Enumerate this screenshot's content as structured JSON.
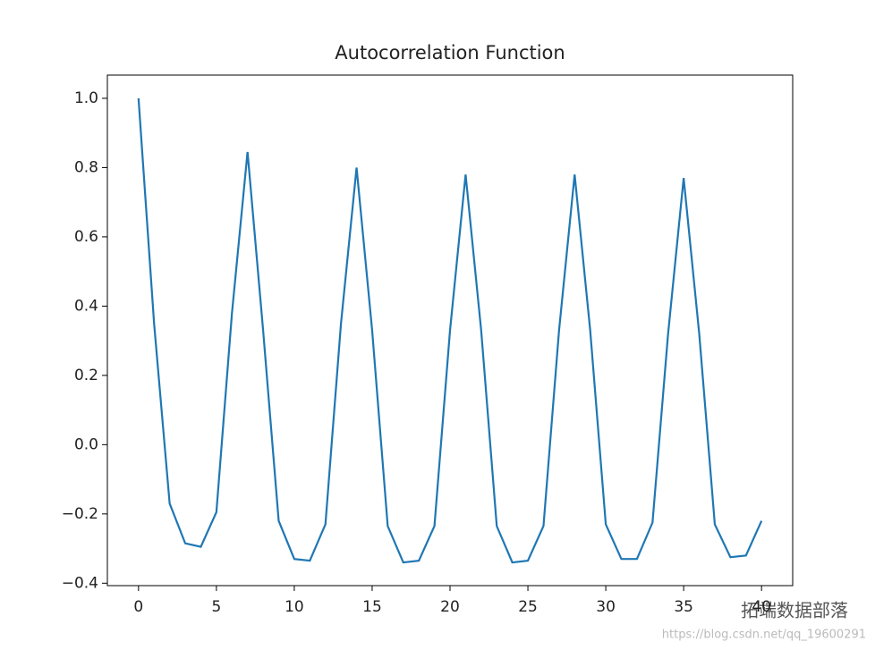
{
  "chart_data": {
    "type": "line",
    "title": "Autocorrelation Function",
    "x": [
      0,
      1,
      2,
      3,
      4,
      5,
      6,
      7,
      8,
      9,
      10,
      11,
      12,
      13,
      14,
      15,
      16,
      17,
      18,
      19,
      20,
      21,
      22,
      23,
      24,
      25,
      26,
      27,
      28,
      29,
      30,
      31,
      32,
      33,
      34,
      35,
      36,
      37,
      38,
      39,
      40
    ],
    "series": [
      {
        "color": "#1f77b4",
        "values": [
          1.0,
          0.35,
          -0.17,
          -0.285,
          -0.295,
          -0.195,
          0.38,
          0.845,
          0.33,
          -0.22,
          -0.33,
          -0.335,
          -0.23,
          0.35,
          0.8,
          0.33,
          -0.235,
          -0.34,
          -0.335,
          -0.235,
          0.33,
          0.78,
          0.33,
          -0.235,
          -0.34,
          -0.335,
          -0.235,
          0.33,
          0.78,
          0.33,
          -0.23,
          -0.33,
          -0.33,
          -0.225,
          0.32,
          0.77,
          0.32,
          -0.23,
          -0.325,
          -0.32,
          -0.22
        ]
      }
    ],
    "xlim": [
      -2,
      42
    ],
    "xticks": [
      0,
      5,
      10,
      15,
      20,
      25,
      30,
      35,
      40
    ],
    "ylim": [
      -0.407,
      1.067
    ],
    "yticks": [
      {
        "value": -0.4,
        "label": "−0.4"
      },
      {
        "value": -0.2,
        "label": "−0.2"
      },
      {
        "value": 0,
        "label": "0.0"
      },
      0.2,
      0.4,
      0.6,
      0.8,
      {
        "value": 1,
        "label": "1.0"
      }
    ],
    "grid": false
  },
  "watermark": {
    "brand": "拓端数据部落",
    "url": "https://blog.csdn.net/qq_19600291"
  }
}
